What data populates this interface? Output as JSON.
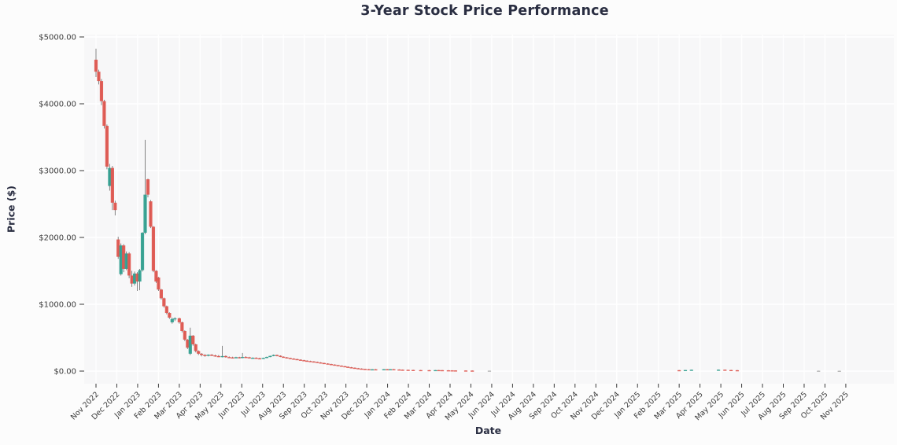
{
  "page": {
    "background": "#fcfcfc"
  },
  "chart_data": {
    "type": "candlestick",
    "title": "3-Year Stock Price Performance",
    "xlabel": "Date",
    "ylabel": "Price ($)",
    "grid": true,
    "legend": "none",
    "ylim": [
      0,
      5000
    ],
    "x_range": [
      "2022-11-01",
      "2025-11-30"
    ],
    "y_ticks": {
      "values": [
        0,
        1000,
        2000,
        3000,
        4000,
        5000
      ],
      "labels": [
        "$0.00",
        "$1000.00",
        "$2000.00",
        "$3000.00",
        "$4000.00",
        "$5000.00"
      ]
    },
    "x_tick_labels": [
      "Nov 2022",
      "Dec 2022",
      "Jan 2023",
      "Feb 2023",
      "Mar 2023",
      "Apr 2023",
      "May 2023",
      "Jun 2023",
      "Jul 2023",
      "Aug 2023",
      "Sep 2023",
      "Oct 2023",
      "Nov 2023",
      "Dec 2023",
      "Jan 2024",
      "Feb 2024",
      "Mar 2024",
      "Apr 2024",
      "May 2024",
      "Jun 2024",
      "Jul 2024",
      "Aug 2024",
      "Sep 2024",
      "Oct 2024",
      "Nov 2024",
      "Dec 2024",
      "Jan 2025",
      "Feb 2025",
      "Mar 2025",
      "Apr 2025",
      "May 2025",
      "Jun 2025",
      "Jul 2025",
      "Aug 2025",
      "Sep 2025",
      "Oct 2025",
      "Nov 2025"
    ],
    "colors": {
      "up": "#2e9e8e",
      "down": "#e0544c",
      "wick": "#4a4a4a",
      "doji": "#b0b0b0",
      "title_text": "#2a2e42",
      "tick_text": "#3a3a3a",
      "plot_bg": "#f7f7f8",
      "grid_line": "#ffffff",
      "figure_bg": "#fcfcfc"
    },
    "candle_fields": [
      "date",
      "open",
      "high",
      "low",
      "close"
    ],
    "candles": [
      [
        "2022-11-01",
        4660,
        4825,
        4400,
        4480
      ],
      [
        "2022-11-05",
        4480,
        4510,
        4290,
        4340
      ],
      [
        "2022-11-09",
        4340,
        4370,
        3980,
        4040
      ],
      [
        "2022-11-13",
        4040,
        4060,
        3630,
        3670
      ],
      [
        "2022-11-17",
        3670,
        3690,
        3020,
        3060
      ],
      [
        "2022-11-21",
        2770,
        3100,
        2700,
        3040
      ],
      [
        "2022-11-25",
        3040,
        3070,
        2410,
        2520
      ],
      [
        "2022-11-29",
        2520,
        2550,
        2330,
        2410
      ],
      [
        "2022-12-03",
        1970,
        2010,
        1680,
        1710
      ],
      [
        "2022-12-07",
        1450,
        1910,
        1430,
        1880
      ],
      [
        "2022-12-11",
        1880,
        1900,
        1480,
        1530
      ],
      [
        "2022-12-15",
        1530,
        1790,
        1510,
        1760
      ],
      [
        "2022-12-19",
        1760,
        1780,
        1390,
        1430
      ],
      [
        "2022-12-23",
        1430,
        1500,
        1260,
        1310
      ],
      [
        "2022-12-27",
        1310,
        1490,
        1280,
        1460
      ],
      [
        "2022-12-31",
        1460,
        1480,
        1200,
        1340
      ],
      [
        "2023-01-04",
        1340,
        1530,
        1210,
        1510
      ],
      [
        "2023-01-08",
        1510,
        2080,
        1490,
        2070
      ],
      [
        "2023-01-12",
        2070,
        3460,
        2050,
        2640
      ],
      [
        "2023-01-16",
        2870,
        2880,
        2600,
        2640
      ],
      [
        "2023-01-20",
        2540,
        2560,
        2140,
        2160
      ],
      [
        "2023-01-24",
        2160,
        2170,
        1480,
        1500
      ],
      [
        "2023-01-28",
        1500,
        1510,
        1320,
        1340
      ],
      [
        "2023-02-01",
        1400,
        1410,
        1200,
        1220
      ],
      [
        "2023-02-05",
        1220,
        1230,
        1070,
        1090
      ],
      [
        "2023-02-09",
        1090,
        1100,
        950,
        970
      ],
      [
        "2023-02-13",
        970,
        980,
        850,
        870
      ],
      [
        "2023-02-17",
        870,
        880,
        780,
        800
      ],
      [
        "2023-02-21",
        730,
        800,
        710,
        780
      ],
      [
        "2023-02-25",
        780,
        805,
        750,
        790
      ],
      [
        "2023-03-01",
        790,
        800,
        710,
        730
      ],
      [
        "2023-03-05",
        730,
        740,
        580,
        600
      ],
      [
        "2023-03-09",
        600,
        610,
        450,
        470
      ],
      [
        "2023-03-13",
        470,
        480,
        330,
        350
      ],
      [
        "2023-03-17",
        260,
        650,
        240,
        530
      ],
      [
        "2023-03-21",
        530,
        540,
        380,
        400
      ],
      [
        "2023-03-25",
        400,
        410,
        280,
        300
      ],
      [
        "2023-03-29",
        300,
        310,
        240,
        260
      ],
      [
        "2023-04-03",
        260,
        270,
        220,
        240
      ],
      [
        "2023-04-08",
        240,
        255,
        215,
        230
      ],
      [
        "2023-04-13",
        230,
        250,
        220,
        245
      ],
      [
        "2023-04-18",
        245,
        255,
        225,
        235
      ],
      [
        "2023-04-23",
        235,
        245,
        215,
        225
      ],
      [
        "2023-04-28",
        225,
        240,
        210,
        220
      ],
      [
        "2023-05-03",
        215,
        378,
        205,
        225
      ],
      [
        "2023-05-08",
        225,
        235,
        200,
        210
      ],
      [
        "2023-05-13",
        210,
        220,
        195,
        205
      ],
      [
        "2023-05-18",
        205,
        215,
        190,
        200
      ],
      [
        "2023-05-23",
        200,
        215,
        192,
        208
      ],
      [
        "2023-05-28",
        208,
        214,
        190,
        198
      ],
      [
        "2023-06-02",
        198,
        272,
        192,
        212
      ],
      [
        "2023-06-07",
        212,
        222,
        196,
        206
      ],
      [
        "2023-06-12",
        206,
        214,
        188,
        196
      ],
      [
        "2023-06-17",
        196,
        206,
        186,
        200
      ],
      [
        "2023-06-22",
        200,
        206,
        184,
        192
      ],
      [
        "2023-06-27",
        192,
        200,
        180,
        188
      ],
      [
        "2023-07-02",
        188,
        201,
        184,
        197
      ],
      [
        "2023-07-07",
        197,
        216,
        193,
        212
      ],
      [
        "2023-07-12",
        212,
        231,
        208,
        227
      ],
      [
        "2023-07-17",
        227,
        248,
        222,
        241
      ],
      [
        "2023-07-22",
        241,
        247,
        221,
        229
      ],
      [
        "2023-07-27",
        229,
        235,
        209,
        215
      ],
      [
        "2023-08-01",
        215,
        221,
        199,
        205
      ],
      [
        "2023-08-06",
        205,
        211,
        189,
        195
      ],
      [
        "2023-08-11",
        195,
        201,
        181,
        187
      ],
      [
        "2023-08-16",
        187,
        193,
        173,
        179
      ],
      [
        "2023-08-21",
        179,
        185,
        165,
        171
      ],
      [
        "2023-08-26",
        171,
        177,
        158,
        163
      ],
      [
        "2023-08-31",
        163,
        169,
        151,
        156
      ],
      [
        "2023-09-05",
        156,
        162,
        145,
        150
      ],
      [
        "2023-09-10",
        150,
        156,
        139,
        144
      ],
      [
        "2023-09-15",
        144,
        149,
        132,
        137
      ],
      [
        "2023-09-20",
        137,
        142,
        124,
        129
      ],
      [
        "2023-09-25",
        129,
        134,
        116,
        121
      ],
      [
        "2023-09-30",
        121,
        126,
        108,
        113
      ],
      [
        "2023-10-05",
        113,
        118,
        100,
        105
      ],
      [
        "2023-10-10",
        105,
        110,
        92,
        97
      ],
      [
        "2023-10-15",
        97,
        102,
        84,
        89
      ],
      [
        "2023-10-20",
        89,
        94,
        76,
        81
      ],
      [
        "2023-10-25",
        81,
        86,
        68,
        73
      ],
      [
        "2023-10-30",
        73,
        78,
        60,
        65
      ],
      [
        "2023-11-04",
        65,
        70,
        52,
        57
      ],
      [
        "2023-11-09",
        57,
        62,
        45,
        50
      ],
      [
        "2023-11-14",
        50,
        55,
        39,
        43
      ],
      [
        "2023-11-19",
        43,
        48,
        33,
        37
      ],
      [
        "2023-11-24",
        37,
        42,
        28,
        32
      ],
      [
        "2023-11-29",
        32,
        36,
        24,
        28
      ],
      [
        "2023-12-04",
        28,
        32,
        21,
        25
      ],
      [
        "2023-12-09",
        25,
        30,
        20,
        27
      ],
      [
        "2023-12-14",
        27,
        31,
        22,
        24
      ],
      [
        "2023-12-26",
        24,
        30,
        19,
        28
      ],
      [
        "2023-12-31",
        28,
        32,
        24,
        26
      ],
      [
        "2024-01-05",
        26,
        30,
        22,
        28
      ],
      [
        "2024-01-10",
        28,
        31,
        22,
        24
      ],
      [
        "2024-01-18",
        24,
        27,
        18,
        21
      ],
      [
        "2024-01-23",
        21,
        24,
        16,
        19
      ],
      [
        "2024-01-31",
        19,
        22,
        14,
        17
      ],
      [
        "2024-02-08",
        17,
        20,
        13,
        15
      ],
      [
        "2024-02-19",
        15,
        18,
        12,
        14
      ],
      [
        "2024-03-01",
        14,
        17,
        11,
        13
      ],
      [
        "2024-03-10",
        13,
        16,
        11,
        15
      ],
      [
        "2024-03-15",
        15,
        17,
        12,
        14
      ],
      [
        "2024-03-20",
        14,
        16,
        11,
        12
      ],
      [
        "2024-03-29",
        12,
        15,
        9,
        11
      ],
      [
        "2024-04-04",
        11,
        13,
        8,
        10
      ],
      [
        "2024-04-09",
        10,
        12,
        7,
        9
      ],
      [
        "2024-04-24",
        9,
        11,
        6,
        8
      ],
      [
        "2024-05-03",
        8,
        10,
        5,
        7
      ],
      [
        "2024-05-28",
        7,
        8,
        5,
        7
      ],
      [
        "2025-03-01",
        14,
        17,
        9,
        11
      ],
      [
        "2025-03-10",
        11,
        18,
        9,
        16
      ],
      [
        "2025-03-19",
        16,
        22,
        13,
        20
      ],
      [
        "2025-04-28",
        12,
        24,
        9,
        21
      ],
      [
        "2025-05-07",
        21,
        24,
        14,
        16
      ],
      [
        "2025-05-16",
        16,
        19,
        11,
        13
      ],
      [
        "2025-05-25",
        13,
        17,
        8,
        10
      ],
      [
        "2025-09-22",
        6,
        8,
        4,
        6
      ],
      [
        "2025-10-22",
        5,
        7,
        3,
        5
      ]
    ]
  }
}
